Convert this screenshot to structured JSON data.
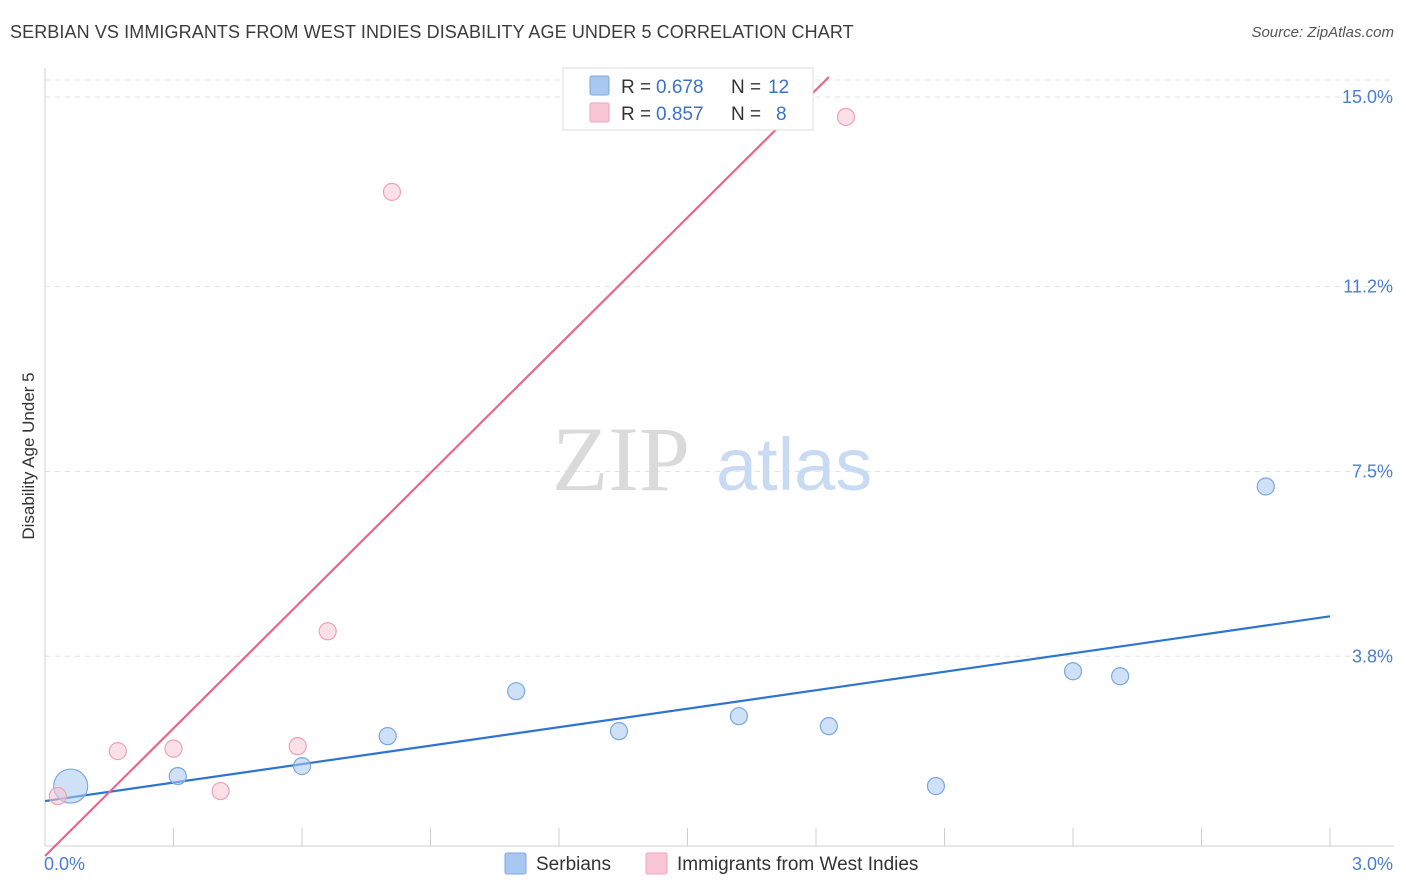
{
  "header": {
    "title": "SERBIAN VS IMMIGRANTS FROM WEST INDIES DISABILITY AGE UNDER 5 CORRELATION CHART",
    "source": "Source: ZipAtlas.com"
  },
  "watermark": {
    "zip": "ZIP",
    "atlas": "atlas"
  },
  "chart_data": {
    "type": "scatter",
    "title": "SERBIAN VS IMMIGRANTS FROM WEST INDIES DISABILITY AGE UNDER 5 CORRELATION CHART",
    "xlabel": "",
    "ylabel": "Disability Age Under 5",
    "xlim": [
      0.0,
      3.0
    ],
    "ylim": [
      0.0,
      15.5
    ],
    "x_tick_labels": [
      {
        "value": 0.0,
        "label": "0.0%"
      },
      {
        "value": 3.0,
        "label": "3.0%"
      }
    ],
    "y_tick_labels": [
      {
        "value": 3.8,
        "label": "3.8%"
      },
      {
        "value": 7.5,
        "label": "7.5%"
      },
      {
        "value": 11.2,
        "label": "11.2%"
      },
      {
        "value": 15.0,
        "label": "15.0%"
      }
    ],
    "grid": true,
    "legend_position": "top-center",
    "series": [
      {
        "name": "Serbians",
        "color": "#a8c8f0",
        "stroke": "#7aa8e0",
        "line_color": "#2f74d0",
        "R": "0.678",
        "N": "12",
        "trend": {
          "x": [
            0.0,
            3.0
          ],
          "y": [
            0.9,
            4.6
          ]
        },
        "points": [
          {
            "x": 0.06,
            "y": 1.2,
            "size": "large"
          },
          {
            "x": 0.31,
            "y": 1.4
          },
          {
            "x": 0.6,
            "y": 1.6
          },
          {
            "x": 0.8,
            "y": 2.2
          },
          {
            "x": 1.1,
            "y": 3.1
          },
          {
            "x": 1.34,
            "y": 2.3
          },
          {
            "x": 1.62,
            "y": 2.6
          },
          {
            "x": 1.83,
            "y": 2.4
          },
          {
            "x": 2.08,
            "y": 1.2
          },
          {
            "x": 2.4,
            "y": 3.5
          },
          {
            "x": 2.51,
            "y": 3.4
          },
          {
            "x": 2.85,
            "y": 7.2
          }
        ]
      },
      {
        "name": "Immigrants from West Indies",
        "color": "#f8c6d4",
        "stroke": "#f0a0b8",
        "line_color": "#e8668c",
        "R": "0.857",
        "N": "8",
        "trend": {
          "x": [
            0.0,
            1.83
          ],
          "y": [
            -0.2,
            15.4
          ]
        },
        "points": [
          {
            "x": 0.03,
            "y": 1.0
          },
          {
            "x": 0.17,
            "y": 1.9
          },
          {
            "x": 0.3,
            "y": 1.95
          },
          {
            "x": 0.41,
            "y": 1.1
          },
          {
            "x": 0.59,
            "y": 2.0
          },
          {
            "x": 0.66,
            "y": 4.3
          },
          {
            "x": 0.81,
            "y": 13.1
          },
          {
            "x": 1.87,
            "y": 14.6
          }
        ]
      }
    ]
  }
}
